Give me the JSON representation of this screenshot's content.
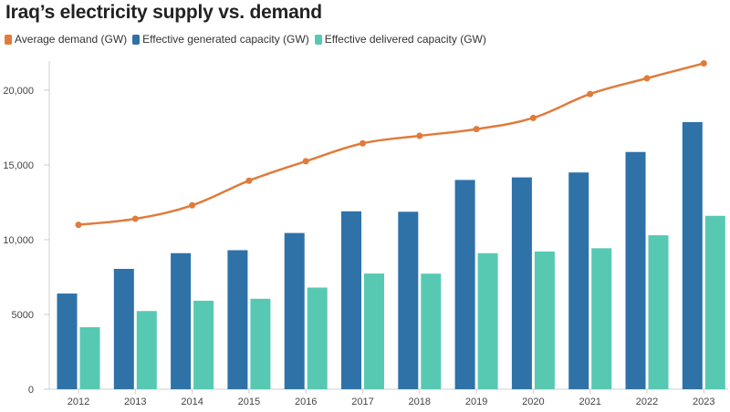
{
  "chart_data": {
    "type": "bar",
    "title": "Iraq’s electricity supply vs. demand",
    "xlabel": "",
    "ylabel": "",
    "ylim": [
      0,
      22000
    ],
    "yticks": [
      0,
      5000,
      10000,
      15000,
      20000
    ],
    "ytick_labels": [
      "0",
      "5000",
      "10,000",
      "15,000",
      "20,000"
    ],
    "grid": false,
    "legend_position": "top-left",
    "categories": [
      "2012",
      "2013",
      "2014",
      "2015",
      "2016",
      "2017",
      "2018",
      "2019",
      "2020",
      "2021",
      "2022",
      "2023"
    ],
    "series": [
      {
        "name": "Average demand (GW)",
        "type": "line",
        "color": "#e07b3c",
        "values": [
          11000,
          11400,
          12300,
          13950,
          15250,
          16450,
          16950,
          17400,
          18150,
          19750,
          20800,
          21800
        ]
      },
      {
        "name": "Effective generated capacity (GW)",
        "type": "bar",
        "color": "#2e72a8",
        "values": [
          6400,
          8050,
          9100,
          9300,
          10450,
          11900,
          11870,
          14000,
          14170,
          14500,
          15870,
          17870
        ]
      },
      {
        "name": "Effective delivered capacity (GW)",
        "type": "bar",
        "color": "#57c9b2",
        "values": [
          4150,
          5230,
          5920,
          6050,
          6800,
          7740,
          7730,
          9100,
          9210,
          9430,
          10300,
          11600
        ]
      }
    ]
  }
}
